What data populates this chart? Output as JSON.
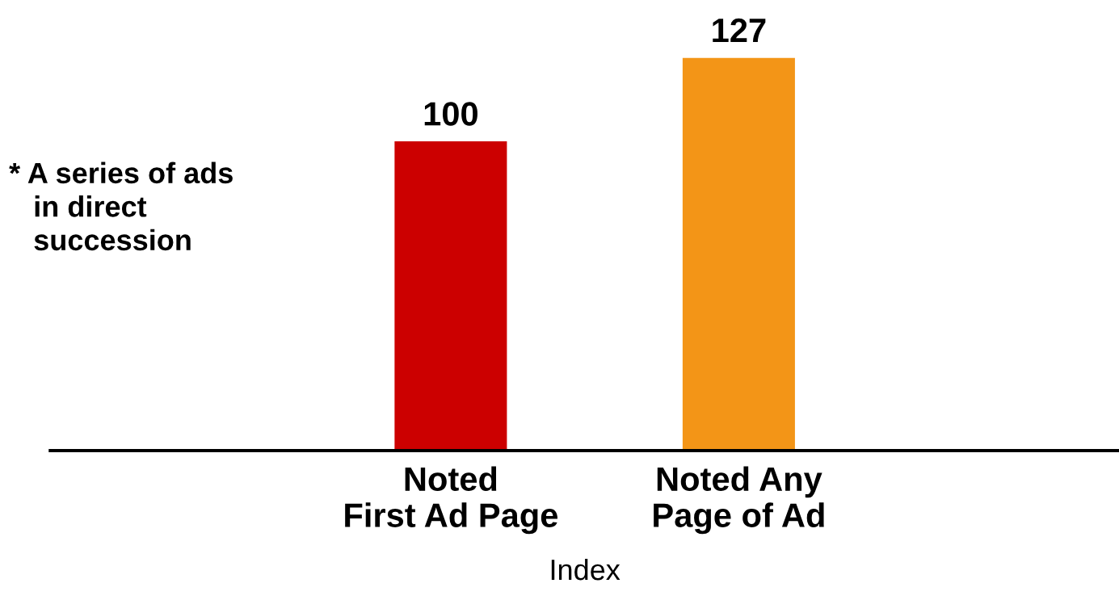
{
  "chart_data": {
    "type": "bar",
    "categories": [
      "Noted\nFirst Ad Page",
      "Noted Any\nPage of Ad"
    ],
    "values": [
      100,
      127
    ],
    "colors": [
      "#cc0000",
      "#f39517"
    ],
    "data_labels": true,
    "xlabel": "Index",
    "annotations": [
      "* A series of ads\n   in direct\n   succession"
    ],
    "grid": false,
    "legend": false
  }
}
